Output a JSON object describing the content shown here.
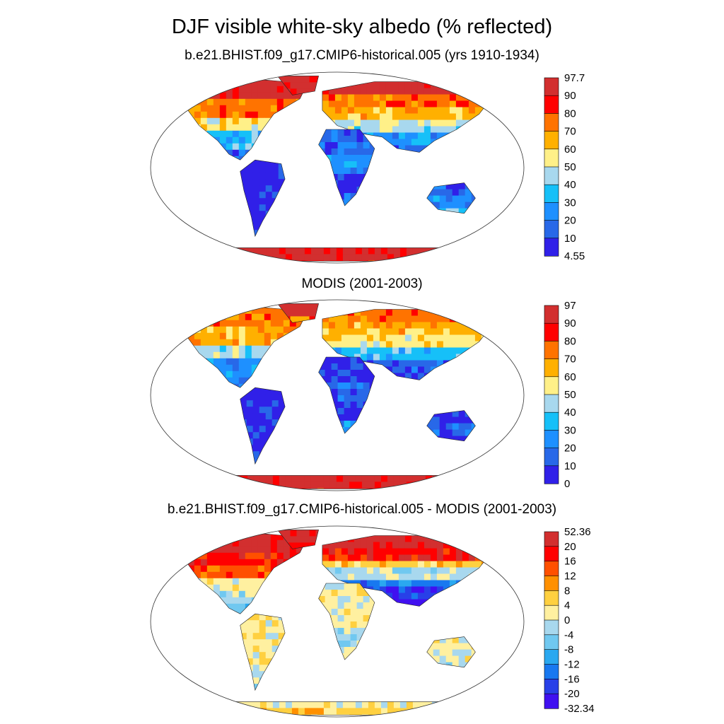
{
  "title": "DJF visible white-sky albedo (% reflected)",
  "panels": [
    {
      "title": "b.e21.BHIST.f09_g17.CMIP6-historical.005 (yrs 1910-1934)",
      "colorbar": {
        "labels": [
          "97.7",
          "90",
          "80",
          "70",
          "60",
          "50",
          "40",
          "30",
          "20",
          "10",
          "4.55"
        ],
        "colors": [
          "#d22f2f",
          "#ff0000",
          "#ff7300",
          "#ffb000",
          "#fff088",
          "#a8d8ee",
          "#16c0f8",
          "#1e90ff",
          "#2868e8",
          "#3020e8"
        ]
      },
      "scheme": "model"
    },
    {
      "title": "MODIS (2001-2003)",
      "colorbar": {
        "labels": [
          "97",
          "90",
          "80",
          "70",
          "60",
          "50",
          "40",
          "30",
          "20",
          "10",
          "0"
        ],
        "colors": [
          "#d22f2f",
          "#ff0000",
          "#ff7300",
          "#ffb000",
          "#fff088",
          "#a8d8ee",
          "#16c0f8",
          "#1e90ff",
          "#2868e8",
          "#3020e8"
        ]
      },
      "scheme": "obs"
    },
    {
      "title": "b.e21.BHIST.f09_g17.CMIP6-historical.005 - MODIS (2001-2003)",
      "colorbar": {
        "labels": [
          "52.36",
          "20",
          "16",
          "12",
          "8",
          "4",
          "0",
          "-4",
          "-8",
          "-12",
          "-16",
          "-20",
          "-32.34"
        ],
        "colors": [
          "#d22f2f",
          "#ff0000",
          "#ff5000",
          "#ff9000",
          "#ffd040",
          "#fff0a0",
          "#a8d8ee",
          "#70c8f0",
          "#2aa8f0",
          "#1878f0",
          "#2840e8",
          "#4010f0"
        ]
      },
      "scheme": "diff"
    }
  ]
}
